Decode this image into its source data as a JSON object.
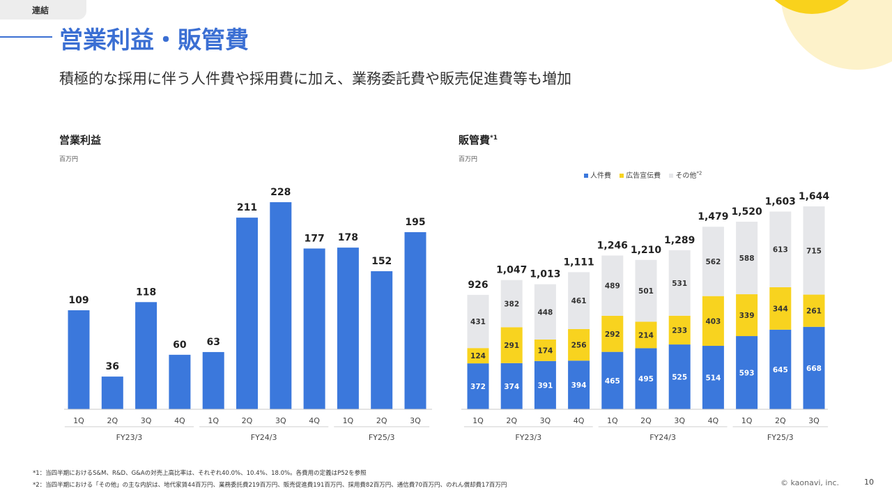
{
  "section_tag": "連結",
  "title": "営業利益・販管費",
  "subtitle": "積極的な採用に伴う人件費や採用費に加え、業務委託費や販売促進費等も増加",
  "footnotes": [
    "*1：当四半期におけるS&M、R&D、G&Aの対売上高比率は、それぞれ40.0%、10.4%、18.0%。各費用の定義はP52を参照",
    "*2：当四半期における「その他」の主な内訳は、地代家賃44百万円、業務委託費219百万円、販売促進費191百万円、採用費82百万円、通信費70百万円、のれん償却費17百万円"
  ],
  "copyright": "© kaonavi, inc.",
  "page_number": "10",
  "colors": {
    "blue": "#3b78dc",
    "yellow": "#f8d31f",
    "gray": "#e6e7ea",
    "title": "#3b6fd3"
  },
  "chart_data": [
    {
      "type": "bar",
      "title": "営業利益",
      "unit": "百万円",
      "categories": [
        "1Q",
        "2Q",
        "3Q",
        "4Q",
        "1Q",
        "2Q",
        "3Q",
        "4Q",
        "1Q",
        "2Q",
        "3Q"
      ],
      "groups": [
        {
          "label": "FY23/3",
          "count": 4
        },
        {
          "label": "FY24/3",
          "count": 4
        },
        {
          "label": "FY25/3",
          "count": 3
        }
      ],
      "values": [
        109,
        36,
        118,
        60,
        63,
        211,
        228,
        177,
        178,
        152,
        195
      ],
      "labels": [
        "109",
        "36",
        "118",
        "60",
        "63",
        "211",
        "228",
        "177",
        "178",
        "152",
        "195"
      ],
      "ylim": [
        0,
        228
      ]
    },
    {
      "type": "stacked-bar",
      "title": "販管費",
      "title_note": "*1",
      "unit": "百万円",
      "categories": [
        "1Q",
        "2Q",
        "3Q",
        "4Q",
        "1Q",
        "2Q",
        "3Q",
        "4Q",
        "1Q",
        "2Q",
        "3Q"
      ],
      "groups": [
        {
          "label": "FY23/3",
          "count": 4
        },
        {
          "label": "FY24/3",
          "count": 4
        },
        {
          "label": "FY25/3",
          "count": 3
        }
      ],
      "legend": [
        {
          "name": "人件費",
          "note": ""
        },
        {
          "name": "広告宣伝費",
          "note": ""
        },
        {
          "name": "その他",
          "note": "*2"
        }
      ],
      "series": [
        {
          "name": "人件費",
          "values": [
            372,
            374,
            391,
            394,
            465,
            495,
            525,
            514,
            593,
            645,
            668
          ]
        },
        {
          "name": "広告宣伝費",
          "values": [
            124,
            291,
            174,
            256,
            292,
            214,
            233,
            403,
            339,
            344,
            261
          ]
        },
        {
          "name": "その他",
          "values": [
            431,
            382,
            448,
            461,
            489,
            501,
            531,
            562,
            588,
            613,
            715
          ]
        }
      ],
      "totals": [
        926,
        1047,
        1013,
        1111,
        1246,
        1210,
        1289,
        1479,
        1520,
        1603,
        1644
      ],
      "total_labels": [
        "926",
        "1,047",
        "1,013",
        "1,111",
        "1,246",
        "1,210",
        "1,289",
        "1,479",
        "1,520",
        "1,603",
        "1,644"
      ],
      "ylim": [
        0,
        1644
      ]
    }
  ]
}
